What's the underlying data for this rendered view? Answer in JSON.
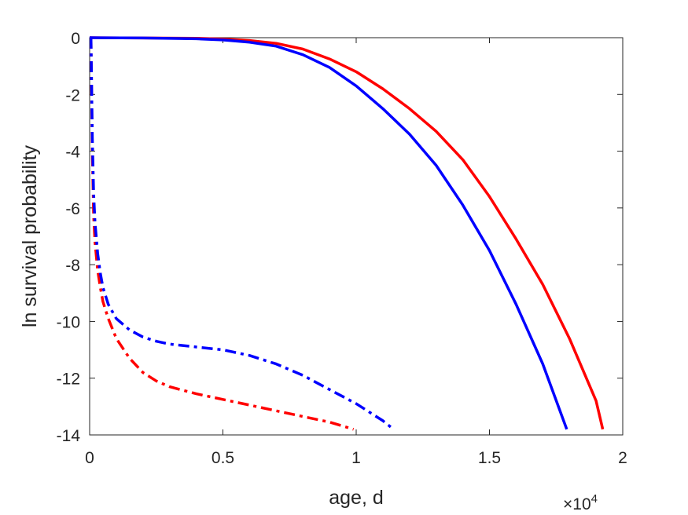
{
  "chart_data": {
    "type": "line",
    "xlabel": "age, d",
    "ylabel": "ln survival probability",
    "x_multiplier_label": "×10",
    "x_multiplier_exponent": "4",
    "xlim": [
      0,
      20000
    ],
    "ylim": [
      -14,
      0
    ],
    "x_ticks": [
      0,
      5000,
      10000,
      15000,
      20000
    ],
    "x_tick_labels": [
      "0",
      "0.5",
      "1",
      "1.5",
      "2"
    ],
    "y_ticks": [
      0,
      -2,
      -4,
      -6,
      -8,
      -10,
      -12,
      -14
    ],
    "y_tick_labels": [
      "0",
      "-2",
      "-4",
      "-6",
      "-8",
      "-10",
      "-12",
      "-14"
    ],
    "grid": false,
    "box": true,
    "series": [
      {
        "color": "#ff0000",
        "style": "solid",
        "x": [
          0,
          2000,
          4000,
          5000,
          6000,
          7000,
          8000,
          9000,
          10000,
          11000,
          12000,
          13000,
          14000,
          15000,
          16000,
          17000,
          18000,
          19000,
          19250
        ],
        "y": [
          0,
          -0.01,
          -0.02,
          -0.05,
          -0.1,
          -0.2,
          -0.4,
          -0.75,
          -1.2,
          -1.8,
          -2.5,
          -3.3,
          -4.3,
          -5.6,
          -7.1,
          -8.7,
          -10.6,
          -12.8,
          -13.8
        ]
      },
      {
        "color": "#0000ff",
        "style": "solid",
        "x": [
          0,
          2000,
          4000,
          5000,
          6000,
          7000,
          8000,
          9000,
          10000,
          11000,
          12000,
          13000,
          14000,
          15000,
          16000,
          17000,
          17900
        ],
        "y": [
          0,
          -0.01,
          -0.04,
          -0.08,
          -0.16,
          -0.3,
          -0.6,
          -1.05,
          -1.7,
          -2.5,
          -3.4,
          -4.5,
          -5.9,
          -7.5,
          -9.4,
          -11.5,
          -13.8
        ]
      },
      {
        "color": "#ff0000",
        "style": "dashdot",
        "x": [
          50,
          100,
          150,
          200,
          300,
          400,
          500,
          700,
          1000,
          1500,
          2000,
          2500,
          3000,
          4000,
          5000,
          6000,
          7000,
          8000,
          9000,
          9900
        ],
        "y": [
          0,
          -4.0,
          -6.3,
          -7.2,
          -8.2,
          -8.8,
          -9.3,
          -9.9,
          -10.6,
          -11.3,
          -11.8,
          -12.1,
          -12.3,
          -12.55,
          -12.75,
          -12.95,
          -13.15,
          -13.35,
          -13.55,
          -13.8
        ]
      },
      {
        "color": "#0000ff",
        "style": "dashdot",
        "x": [
          50,
          100,
          150,
          200,
          300,
          400,
          500,
          700,
          1000,
          1500,
          2000,
          2500,
          3000,
          4000,
          5000,
          6000,
          7000,
          8000,
          9000,
          10000,
          11000,
          11400
        ],
        "y": [
          0,
          -3.5,
          -5.5,
          -6.5,
          -7.6,
          -8.3,
          -8.8,
          -9.4,
          -9.9,
          -10.3,
          -10.55,
          -10.7,
          -10.8,
          -10.9,
          -11.0,
          -11.2,
          -11.5,
          -11.9,
          -12.4,
          -12.9,
          -13.5,
          -13.8
        ]
      }
    ]
  }
}
